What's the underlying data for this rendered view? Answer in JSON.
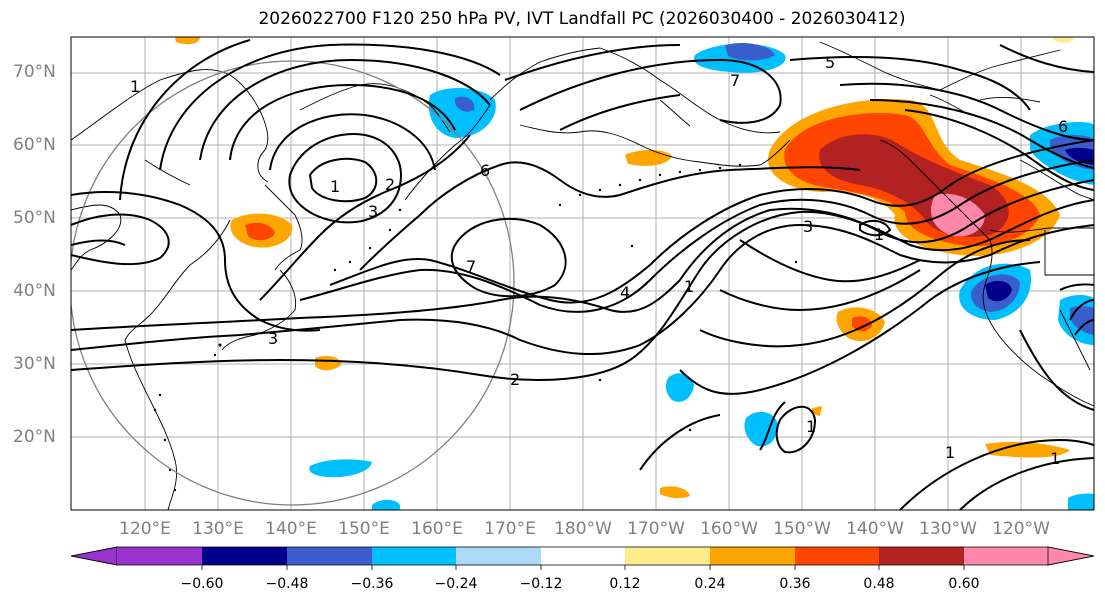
{
  "title": "2026022700 F120 250 hPa PV, IVT Landfall PC (2026030400 - 2026030412)",
  "lat_labels": [
    "70°N",
    "60°N",
    "50°N",
    "40°N",
    "30°N",
    "20°N"
  ],
  "lon_labels": [
    "120°E",
    "130°E",
    "140°E",
    "150°E",
    "160°E",
    "170°E",
    "180°W",
    "170°W",
    "160°W",
    "150°W",
    "140°W",
    "130°W",
    "120°W"
  ],
  "contour_labels": [
    "1",
    "5",
    "7",
    "1",
    "2",
    "3",
    "6",
    "7",
    "4",
    "1",
    "3",
    "3",
    "6",
    "2",
    "1",
    "1",
    "1",
    "1"
  ],
  "colorbar": {
    "tick_labels": [
      "−0.60",
      "−0.48",
      "−0.36",
      "−0.24",
      "−0.12",
      "0.12",
      "0.24",
      "0.36",
      "0.48",
      "0.60"
    ],
    "colors": [
      "#9932cc",
      "#00008b",
      "#3a5fcd",
      "#00bfff",
      "#add8f7",
      "#ffffff",
      "#ffea8c",
      "#ffa500",
      "#ff4500",
      "#b22222",
      "#ff88aa",
      "#ff88aa"
    ]
  }
}
